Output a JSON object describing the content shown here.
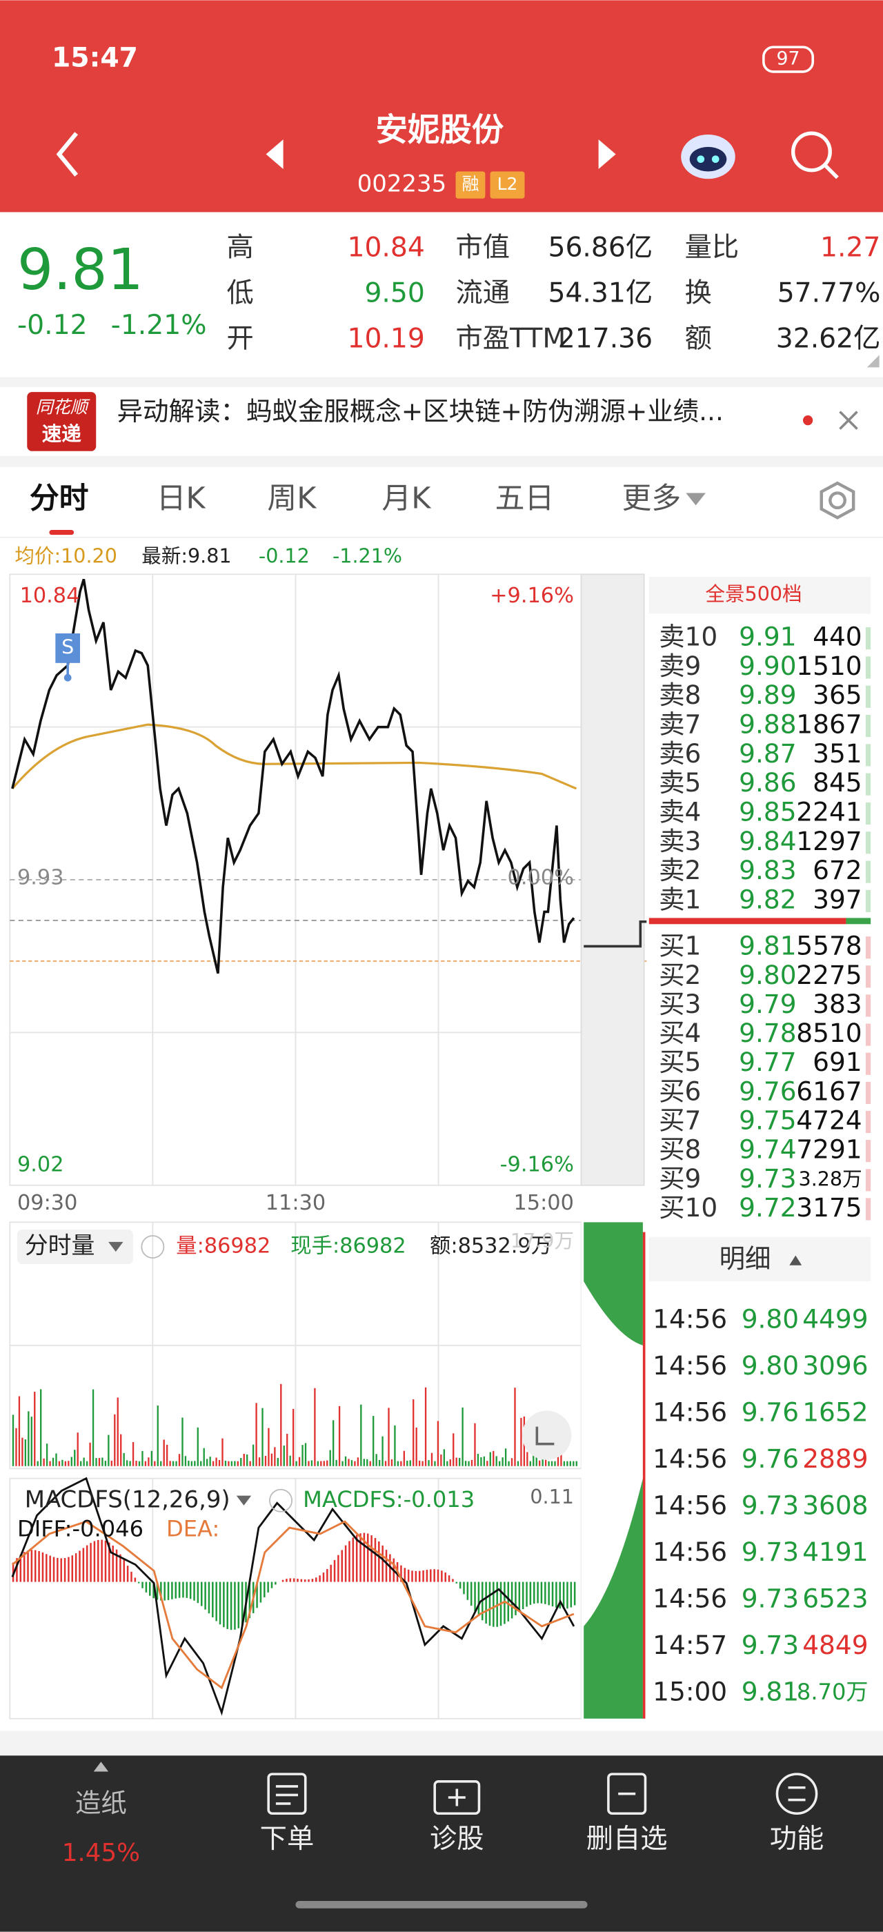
{
  "status_bar": {
    "time": "15:47",
    "battery": "97"
  },
  "header": {
    "title": "安妮股份",
    "code": "002235",
    "badges": [
      "融",
      "L2"
    ]
  },
  "quote": {
    "price": "9.81",
    "change": "-0.12",
    "change_pct": "-1.21%",
    "stats": [
      [
        {
          "label": "高",
          "value": "10.84",
          "color": "#e0312f"
        },
        {
          "label": "市值",
          "value": "56.86亿",
          "color": "#222222"
        },
        {
          "label": "量比",
          "value": "1.27",
          "color": "#e0312f"
        }
      ],
      [
        {
          "label": "低",
          "value": "9.50",
          "color": "#1f9a3a"
        },
        {
          "label": "流通",
          "value": "54.31亿",
          "color": "#222222"
        },
        {
          "label": "换",
          "value": "57.77%",
          "color": "#222222"
        }
      ],
      [
        {
          "label": "开",
          "value": "10.19",
          "color": "#e0312f"
        },
        {
          "label": "市盈TTM",
          "value": "217.36",
          "color": "#222222"
        },
        {
          "label": "额",
          "value": "32.62亿",
          "color": "#222222"
        }
      ]
    ]
  },
  "news": {
    "badge": [
      "同花顺",
      "速递"
    ],
    "text": "异动解读：蚂蚁金服概念+区块链+防伪溯源+业绩..."
  },
  "tabs": [
    "分时",
    "日K",
    "周K",
    "月K",
    "五日",
    "更多"
  ],
  "intraday": {
    "avg_price": "均价:10.20",
    "latest": "最新:9.81",
    "change": "-0.12",
    "change_pct": "-1.21%",
    "high": "10.84",
    "high_pct": "+9.16%",
    "prev_close": "9.93",
    "zero_pct": "0.00%",
    "low": "9.02",
    "low_pct": "-9.16%",
    "times": [
      "09:30",
      "11:30",
      "15:00"
    ],
    "marker": "S"
  },
  "volume_panel": {
    "title": "分时量",
    "volume": "量:86982",
    "current": "现手:86982",
    "amount": "额:8532.9万",
    "max": "17.9万"
  },
  "macd_panel": {
    "title": "MACDFS(12,26,9)",
    "macdfs": "MACDFS:-0.013",
    "max": "0.11",
    "diff": "DIFF:-0.046",
    "dea": "DEA:"
  },
  "order_book": {
    "title": "全景500档",
    "sell": [
      [
        "卖10",
        "9.91",
        "440"
      ],
      [
        "卖9",
        "9.90",
        "1510"
      ],
      [
        "卖8",
        "9.89",
        "365"
      ],
      [
        "卖7",
        "9.88",
        "1867"
      ],
      [
        "卖6",
        "9.87",
        "351"
      ],
      [
        "卖5",
        "9.86",
        "845"
      ],
      [
        "卖4",
        "9.85",
        "2241"
      ],
      [
        "卖3",
        "9.84",
        "1297"
      ],
      [
        "卖2",
        "9.83",
        "672"
      ],
      [
        "卖1",
        "9.82",
        "397"
      ]
    ],
    "buy": [
      [
        "买1",
        "9.81",
        "5578"
      ],
      [
        "买2",
        "9.80",
        "2275"
      ],
      [
        "买3",
        "9.79",
        "383"
      ],
      [
        "买4",
        "9.78",
        "8510"
      ],
      [
        "买5",
        "9.77",
        "691"
      ],
      [
        "买6",
        "9.76",
        "6167"
      ],
      [
        "买7",
        "9.75",
        "4724"
      ],
      [
        "买8",
        "9.74",
        "7291"
      ],
      [
        "买9",
        "9.73",
        "3.28万"
      ],
      [
        "买10",
        "9.72",
        "3175"
      ]
    ]
  },
  "trades": {
    "title": "明细",
    "rows": [
      {
        "time": "14:56",
        "price": "9.80",
        "volume": "4499",
        "color": "#1f9a3a"
      },
      {
        "time": "14:56",
        "price": "9.80",
        "volume": "3096",
        "color": "#1f9a3a"
      },
      {
        "time": "14:56",
        "price": "9.76",
        "volume": "1652",
        "color": "#1f9a3a"
      },
      {
        "time": "14:56",
        "price": "9.76",
        "volume": "2889",
        "color": "#e0312f"
      },
      {
        "time": "14:56",
        "price": "9.73",
        "volume": "3608",
        "color": "#1f9a3a"
      },
      {
        "time": "14:56",
        "price": "9.73",
        "volume": "4191",
        "color": "#1f9a3a"
      },
      {
        "time": "14:56",
        "price": "9.73",
        "volume": "6523",
        "color": "#1f9a3a"
      },
      {
        "time": "14:57",
        "price": "9.73",
        "volume": "4849",
        "color": "#e0312f"
      },
      {
        "time": "15:00",
        "price": "9.81",
        "volume": "8.70万",
        "color": "#1f9a3a"
      }
    ]
  },
  "bottom_nav": {
    "sector": "造纸",
    "sector_change": "1.45%",
    "items": [
      "下单",
      "诊股",
      "删自选",
      "功能"
    ]
  }
}
